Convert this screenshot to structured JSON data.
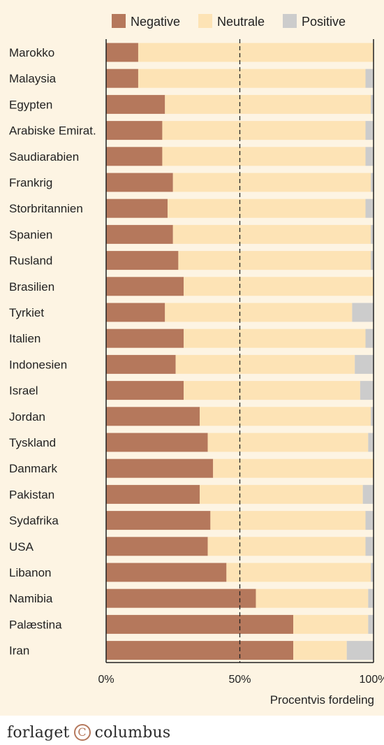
{
  "chart_data": {
    "type": "bar",
    "orientation": "horizontal",
    "stacked": true,
    "categories": [
      "Marokko",
      "Malaysia",
      "Egypten",
      "Arabiske Emirat.",
      "Saudiarabien",
      "Frankrig",
      "Storbritannien",
      "Spanien",
      "Rusland",
      "Brasilien",
      "Tyrkiet",
      "Italien",
      "Indonesien",
      "Israel",
      "Jordan",
      "Tyskland",
      "Danmark",
      "Pakistan",
      "Sydafrika",
      "USA",
      "Libanon",
      "Namibia",
      "Palæstina",
      "Iran"
    ],
    "series": [
      {
        "name": "Negative",
        "color": "#b5785c",
        "values": [
          12,
          12,
          22,
          21,
          21,
          25,
          23,
          25,
          27,
          29,
          22,
          29,
          26,
          29,
          35,
          38,
          40,
          35,
          39,
          38,
          45,
          56,
          70,
          70
        ]
      },
      {
        "name": "Neutrale",
        "color": "#fde3b5",
        "values": [
          88,
          85,
          77,
          76,
          76,
          74,
          74,
          74,
          72,
          71,
          70,
          68,
          67,
          66,
          64,
          60,
          60,
          61,
          58,
          59,
          54,
          42,
          28,
          20
        ]
      },
      {
        "name": "Positive",
        "color": "#cccccc",
        "values": [
          0,
          3,
          1,
          3,
          3,
          1,
          3,
          1,
          1,
          0,
          8,
          3,
          7,
          5,
          1,
          2,
          0,
          4,
          3,
          3,
          1,
          2,
          2,
          10
        ]
      }
    ],
    "xlim": [
      0,
      100
    ],
    "xticks": [
      "0%",
      "50%",
      "100%"
    ],
    "xlabel": "Procentvis fordeling",
    "legend_position": "top",
    "reference_line": 50,
    "grid": false
  },
  "footer": {
    "brand_left": "forlaget",
    "brand_mark": "C",
    "brand_right": "columbus"
  }
}
